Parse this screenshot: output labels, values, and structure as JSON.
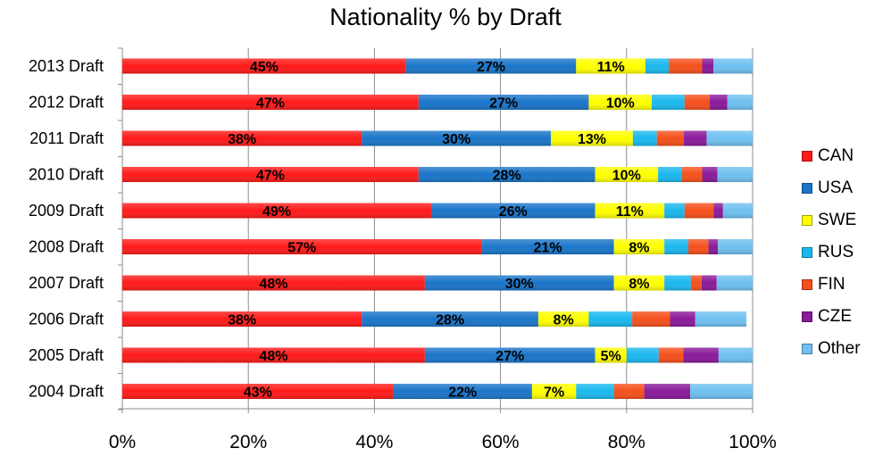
{
  "chart_data": {
    "type": "bar",
    "orientation": "horizontal",
    "stacked": true,
    "title": "Nationality % by Draft",
    "xlabel": "",
    "ylabel": "",
    "xlim": [
      0,
      100
    ],
    "x_ticks": [
      "0%",
      "20%",
      "40%",
      "60%",
      "80%",
      "100%"
    ],
    "grid": true,
    "legend_position": "right",
    "categories": [
      "2013 Draft",
      "2012 Draft",
      "2011 Draft",
      "2010 Draft",
      "2009 Draft",
      "2008 Draft",
      "2007 Draft",
      "2006 Draft",
      "2005 Draft",
      "2004 Draft"
    ],
    "series": [
      {
        "name": "CAN",
        "color": "#ff1a1a",
        "label_color": "#000000",
        "values": [
          45,
          47,
          38,
          47,
          49,
          57,
          48,
          38,
          48,
          43
        ],
        "labels": [
          "45%",
          "47%",
          "38%",
          "47%",
          "49%",
          "57%",
          "48%",
          "38%",
          "48%",
          "43%"
        ]
      },
      {
        "name": "USA",
        "color": "#1a75c9",
        "label_color": "#000000",
        "values": [
          27,
          27,
          30,
          28,
          26,
          21,
          30,
          28,
          27,
          22
        ],
        "labels": [
          "27%",
          "27%",
          "30%",
          "28%",
          "26%",
          "21%",
          "30%",
          "28%",
          "27%",
          "22%"
        ]
      },
      {
        "name": "SWE",
        "color": "#ffff00",
        "label_color": "#000000",
        "values": [
          11,
          10,
          13,
          10,
          11,
          8,
          8,
          8,
          5,
          7
        ],
        "labels": [
          "11%",
          "10%",
          "13%",
          "10%",
          "11%",
          "8%",
          "8%",
          "8%",
          "5%",
          "7%"
        ]
      },
      {
        "name": "RUS",
        "color": "#1ab8ee",
        "label_color": "#000000",
        "values": [
          3.7,
          5.2,
          3.8,
          3.8,
          3.2,
          3.8,
          4.2,
          6.9,
          5.1,
          6.0
        ],
        "labels": []
      },
      {
        "name": "FIN",
        "color": "#f5501c",
        "label_color": "#000000",
        "values": [
          5.3,
          4.0,
          4.3,
          3.2,
          4.6,
          3.2,
          1.7,
          6.0,
          3.9,
          4.8
        ],
        "labels": []
      },
      {
        "name": "CZE",
        "color": "#8a1a9a",
        "label_color": "#000000",
        "values": [
          1.8,
          2.8,
          3.6,
          2.4,
          1.5,
          1.5,
          2.4,
          4.0,
          5.6,
          7.3
        ],
        "labels": []
      },
      {
        "name": "Other",
        "color": "#6fc0f0",
        "label_color": "#000000",
        "values": [
          6.2,
          4.0,
          7.3,
          5.6,
          4.7,
          5.5,
          5.7,
          8.1,
          5.4,
          9.9
        ],
        "labels": []
      }
    ]
  }
}
